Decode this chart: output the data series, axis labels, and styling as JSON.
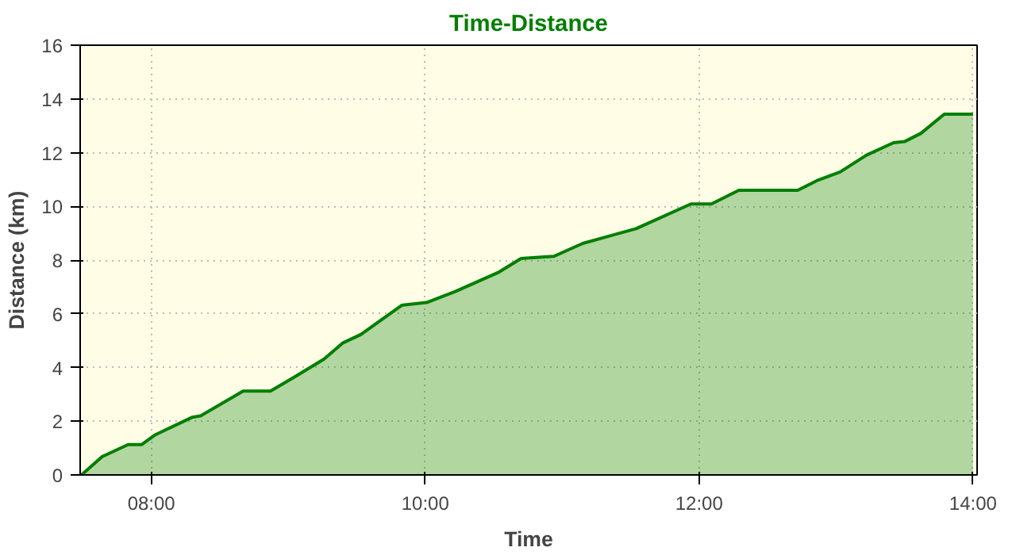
{
  "chart_data": {
    "type": "area",
    "title": "Time-Distance",
    "xlabel": "Time",
    "ylabel": "Distance (km)",
    "x": [
      7.49,
      7.64,
      7.83,
      7.93,
      8.03,
      8.3,
      8.36,
      8.67,
      8.87,
      9.04,
      9.26,
      9.4,
      9.53,
      9.83,
      10.01,
      10.22,
      10.53,
      10.7,
      10.94,
      11.15,
      11.54,
      11.94,
      12.09,
      12.29,
      12.72,
      12.87,
      13.03,
      13.22,
      13.42,
      13.5,
      13.62,
      13.79,
      14.0
    ],
    "series": [
      {
        "color": "#007f00",
        "values": [
          0,
          0.68,
          1.13,
          1.13,
          1.5,
          2.15,
          2.2,
          3.12,
          3.12,
          3.63,
          4.31,
          4.92,
          5.23,
          6.32,
          6.42,
          6.83,
          7.53,
          8.06,
          8.14,
          8.62,
          9.17,
          10.09,
          10.09,
          10.6,
          10.6,
          10.98,
          11.28,
          11.9,
          12.37,
          12.41,
          12.72,
          13.43,
          13.43
        ]
      }
    ],
    "xlim": [
      7.48,
      14.03
    ],
    "xticks": [
      {
        "value": 8,
        "label": "08:00"
      },
      {
        "value": 10,
        "label": "10:00"
      },
      {
        "value": 12,
        "label": "12:00"
      },
      {
        "value": 14,
        "label": "14:00"
      }
    ],
    "ylim": [
      0,
      16
    ],
    "yticks": [
      0,
      2,
      4,
      6,
      8,
      10,
      12,
      14,
      16
    ],
    "grid": true,
    "line_style": "solid"
  }
}
